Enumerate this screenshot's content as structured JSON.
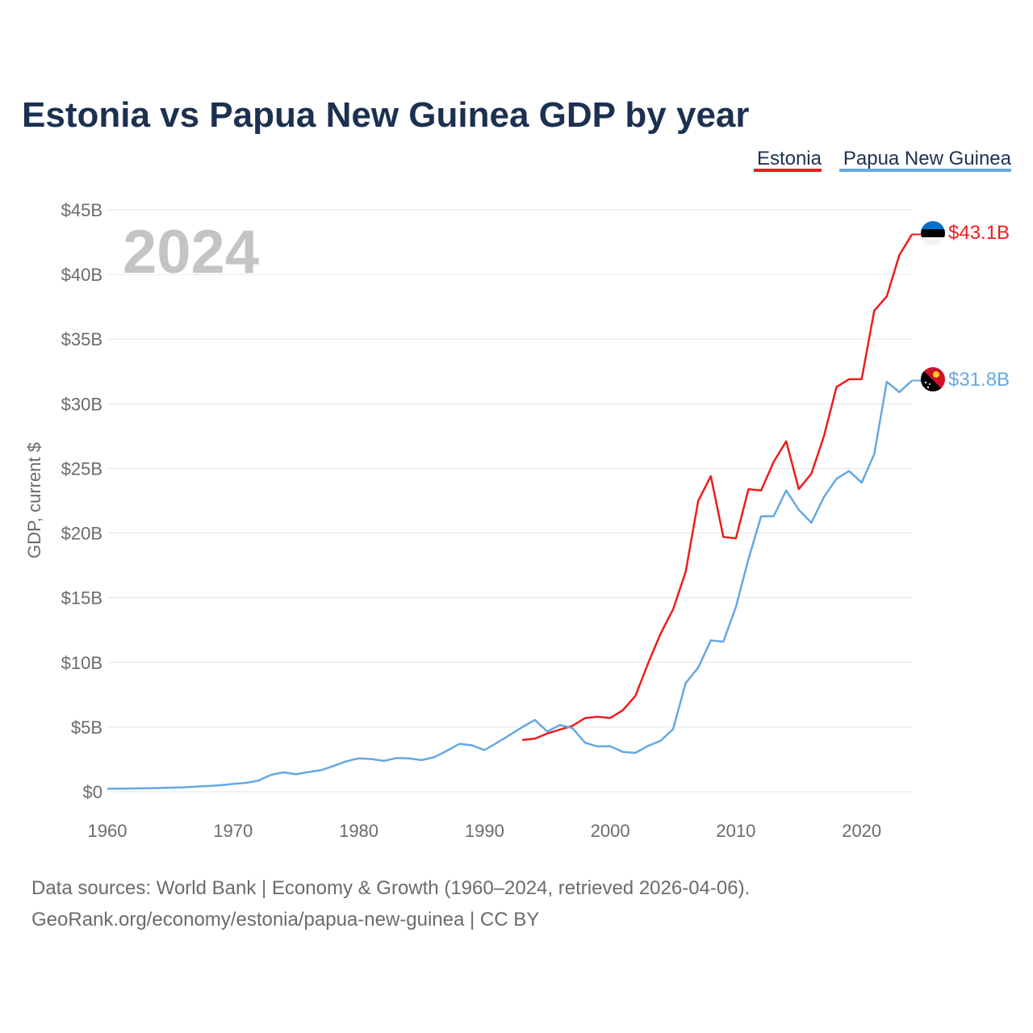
{
  "chart_data": {
    "type": "line",
    "title": "Estonia vs Papua New Guinea GDP by year",
    "ylabel": "GDP, current $",
    "xlabel": "",
    "watermark_year": "2024",
    "xlim": [
      1960,
      2024
    ],
    "ylim": [
      0,
      45
    ],
    "x_ticks": [
      {
        "value": 1960,
        "label": "1960"
      },
      {
        "value": 1970,
        "label": "1970"
      },
      {
        "value": 1980,
        "label": "1980"
      },
      {
        "value": 1990,
        "label": "1990"
      },
      {
        "value": 2000,
        "label": "2000"
      },
      {
        "value": 2010,
        "label": "2010"
      },
      {
        "value": 2020,
        "label": "2020"
      }
    ],
    "y_ticks": [
      {
        "value": 0,
        "label": "$0"
      },
      {
        "value": 5,
        "label": "$5B"
      },
      {
        "value": 10,
        "label": "$10B"
      },
      {
        "value": 15,
        "label": "$15B"
      },
      {
        "value": 20,
        "label": "$20B"
      },
      {
        "value": 25,
        "label": "$25B"
      },
      {
        "value": 30,
        "label": "$30B"
      },
      {
        "value": 35,
        "label": "$35B"
      },
      {
        "value": 40,
        "label": "$40B"
      },
      {
        "value": 45,
        "label": "$45B"
      }
    ],
    "legend_position": "top-right",
    "series": [
      {
        "name": "Estonia",
        "color": "#ee1c1c",
        "end_label": "$43.1B",
        "flag_icon": "estonia-flag-icon",
        "points": [
          [
            1993,
            4.0
          ],
          [
            1994,
            4.1
          ],
          [
            1995,
            4.5
          ],
          [
            1996,
            4.8
          ],
          [
            1997,
            5.1
          ],
          [
            1998,
            5.7
          ],
          [
            1999,
            5.8
          ],
          [
            2000,
            5.7
          ],
          [
            2001,
            6.3
          ],
          [
            2002,
            7.4
          ],
          [
            2003,
            9.9
          ],
          [
            2004,
            12.2
          ],
          [
            2005,
            14.1
          ],
          [
            2006,
            17.0
          ],
          [
            2007,
            22.5
          ],
          [
            2008,
            24.4
          ],
          [
            2009,
            19.7
          ],
          [
            2010,
            19.6
          ],
          [
            2011,
            23.4
          ],
          [
            2012,
            23.3
          ],
          [
            2013,
            25.5
          ],
          [
            2014,
            27.1
          ],
          [
            2015,
            23.4
          ],
          [
            2016,
            24.6
          ],
          [
            2017,
            27.5
          ],
          [
            2018,
            31.3
          ],
          [
            2019,
            31.9
          ],
          [
            2020,
            31.9
          ],
          [
            2021,
            37.2
          ],
          [
            2022,
            38.3
          ],
          [
            2023,
            41.5
          ],
          [
            2024,
            43.1
          ]
        ]
      },
      {
        "name": "Papua New Guinea",
        "color": "#64a8e4",
        "end_label": "$31.8B",
        "flag_icon": "papua-new-guinea-flag-icon",
        "points": [
          [
            1960,
            0.23
          ],
          [
            1961,
            0.24
          ],
          [
            1962,
            0.25
          ],
          [
            1963,
            0.26
          ],
          [
            1964,
            0.28
          ],
          [
            1965,
            0.31
          ],
          [
            1966,
            0.34
          ],
          [
            1967,
            0.39
          ],
          [
            1968,
            0.44
          ],
          [
            1969,
            0.5
          ],
          [
            1970,
            0.6
          ],
          [
            1971,
            0.68
          ],
          [
            1972,
            0.85
          ],
          [
            1973,
            1.3
          ],
          [
            1974,
            1.5
          ],
          [
            1975,
            1.35
          ],
          [
            1976,
            1.52
          ],
          [
            1977,
            1.66
          ],
          [
            1978,
            1.99
          ],
          [
            1979,
            2.35
          ],
          [
            1980,
            2.58
          ],
          [
            1981,
            2.53
          ],
          [
            1982,
            2.38
          ],
          [
            1983,
            2.6
          ],
          [
            1984,
            2.58
          ],
          [
            1985,
            2.44
          ],
          [
            1986,
            2.67
          ],
          [
            1987,
            3.16
          ],
          [
            1988,
            3.7
          ],
          [
            1989,
            3.59
          ],
          [
            1990,
            3.22
          ],
          [
            1991,
            3.79
          ],
          [
            1992,
            4.38
          ],
          [
            1993,
            4.99
          ],
          [
            1994,
            5.55
          ],
          [
            1995,
            4.65
          ],
          [
            1996,
            5.16
          ],
          [
            1997,
            4.91
          ],
          [
            1998,
            3.79
          ],
          [
            1999,
            3.5
          ],
          [
            2000,
            3.52
          ],
          [
            2001,
            3.08
          ],
          [
            2002,
            3.0
          ],
          [
            2003,
            3.54
          ],
          [
            2004,
            3.93
          ],
          [
            2005,
            4.84
          ],
          [
            2006,
            8.4
          ],
          [
            2007,
            9.6
          ],
          [
            2008,
            11.7
          ],
          [
            2009,
            11.6
          ],
          [
            2010,
            14.3
          ],
          [
            2011,
            18.0
          ],
          [
            2012,
            21.3
          ],
          [
            2013,
            21.3
          ],
          [
            2014,
            23.3
          ],
          [
            2015,
            21.8
          ],
          [
            2016,
            20.8
          ],
          [
            2017,
            22.8
          ],
          [
            2018,
            24.2
          ],
          [
            2019,
            24.8
          ],
          [
            2020,
            23.9
          ],
          [
            2021,
            26.1
          ],
          [
            2022,
            31.7
          ],
          [
            2023,
            30.9
          ],
          [
            2024,
            31.8
          ]
        ]
      }
    ]
  },
  "footer": {
    "source_line": "Data sources: World Bank | Economy & Growth (1960–2024, retrieved 2026-04-06).",
    "url_line": "GeoRank.org/economy/estonia/papua-new-guinea | CC BY"
  }
}
